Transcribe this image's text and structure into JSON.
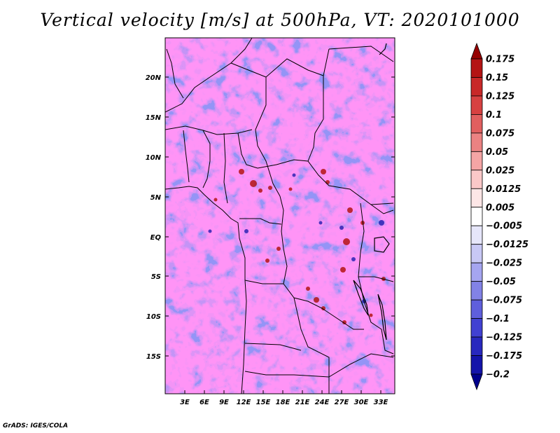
{
  "title": "Vertical velocity [m/s] at 500hPa, VT: 2020101000",
  "credit": "GrADS: IGES/COLA",
  "map": {
    "lat_labels": [
      "20N",
      "15N",
      "10N",
      "5N",
      "EQ",
      "5S",
      "10S",
      "15S"
    ],
    "lon_labels": [
      "3E",
      "6E",
      "9E",
      "12E",
      "15E",
      "18E",
      "21E",
      "24E",
      "27E",
      "30E",
      "33E"
    ]
  },
  "colorbar": {
    "labels": [
      "0.175",
      "0.15",
      "0.125",
      "0.1",
      "0.075",
      "0.05",
      "0.025",
      "0.0125",
      "0.005",
      "−0.005",
      "−0.0125",
      "−0.025",
      "−0.05",
      "−0.075",
      "−0.1",
      "−0.125",
      "−0.175",
      "−0.2"
    ],
    "colors": [
      "#960000",
      "#b41414",
      "#c82828",
      "#d74141",
      "#e15f5f",
      "#eb8282",
      "#f5a5a5",
      "#fac8c8",
      "#fde6e6",
      "#ffffff",
      "#e6e6fa",
      "#c8c8f5",
      "#a5a5f0",
      "#8282e6",
      "#5f5fdc",
      "#4141d2",
      "#2828be",
      "#1414aa",
      "#00008c"
    ]
  }
}
